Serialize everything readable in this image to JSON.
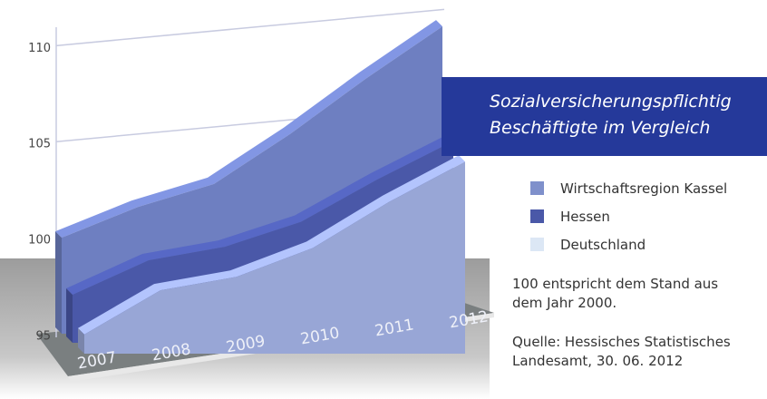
{
  "chart_data": {
    "type": "area3d",
    "title": "Sozialversicherungspflichtig Beschäftigte im Vergleich",
    "categories": [
      "2007",
      "2008",
      "2009",
      "2010",
      "2011",
      "2012"
    ],
    "series": [
      {
        "name": "Wirtschaftsregion Kassel",
        "color": "#6e7fc1",
        "legend_color": "#7f90cb",
        "values": [
          100,
          101.6,
          102.8,
          105.4,
          108.3,
          111
        ]
      },
      {
        "name": "Hessen",
        "color": "#4a58a8",
        "legend_color": "#4a58a8",
        "values": [
          97.5,
          99.3,
          100,
          101.3,
          103.5,
          105.5
        ]
      },
      {
        "name": "Deutschland",
        "color": "#98a6d6",
        "legend_color": "#dce7f5",
        "values": [
          96,
          98.3,
          99,
          100.5,
          102.9,
          105
        ]
      }
    ],
    "ylim": [
      95,
      112
    ],
    "yticks": [
      95,
      100,
      105,
      110
    ],
    "grid": true,
    "notes": [
      "100 entspricht dem Stand aus dem Jahr 2000.",
      "Quelle: Hessisches Statistisches Landesamt, 30. 06. 2012"
    ]
  }
}
